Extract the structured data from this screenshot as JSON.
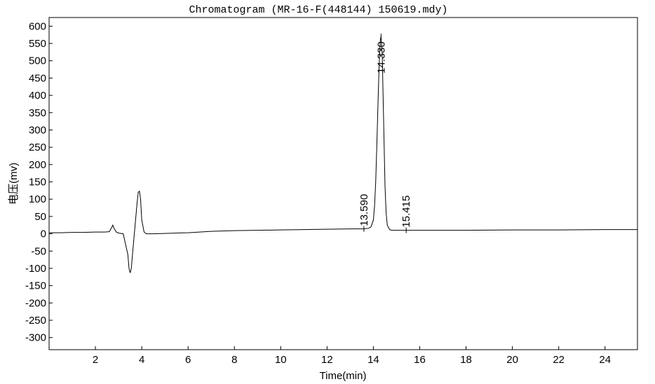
{
  "chart_data": {
    "type": "line",
    "title": "Chromatogram (MR-16-F(448144) 150619.mdy)",
    "xlabel": "Time(min)",
    "ylabel": "电压(mv)",
    "xlim": [
      0,
      25.4
    ],
    "ylim": [
      -335,
      625
    ],
    "x_ticks": [
      2,
      4,
      6,
      8,
      10,
      12,
      14,
      16,
      18,
      20,
      22,
      24
    ],
    "y_ticks": [
      600,
      550,
      500,
      450,
      400,
      350,
      300,
      250,
      200,
      150,
      100,
      50,
      0,
      -50,
      -100,
      -150,
      -200,
      -250,
      -300
    ],
    "grid": false,
    "series": [
      {
        "x": [
          0,
          0.5,
          1.0,
          1.5,
          2.0,
          2.4,
          2.6,
          2.7,
          2.75,
          2.8,
          2.9,
          3.0,
          3.2,
          3.4,
          3.45,
          3.5,
          3.55,
          3.6,
          3.7,
          3.8,
          3.85,
          3.9,
          3.95,
          4.0,
          4.1,
          4.2,
          4.5,
          5.0,
          5.5,
          6.0,
          6.5,
          7.0,
          7.5,
          8.0,
          9.0,
          10.0,
          11.0,
          12.0,
          13.0,
          13.59,
          13.8,
          13.9,
          14.0,
          14.05,
          14.1,
          14.15,
          14.2,
          14.25,
          14.3,
          14.33,
          14.38,
          14.45,
          14.5,
          14.55,
          14.6,
          14.7,
          14.8,
          15.0,
          15.415,
          16.0,
          18.0,
          20.0,
          22.0,
          24.0,
          25.4
        ],
        "y": [
          3,
          3,
          4,
          4,
          5,
          5,
          6,
          18,
          25,
          16,
          5,
          2,
          0,
          -60,
          -100,
          -113,
          -100,
          -60,
          15,
          90,
          120,
          123,
          100,
          40,
          5,
          0,
          0,
          1,
          2,
          3,
          5,
          7,
          8,
          9,
          10,
          11,
          12,
          13,
          14,
          14,
          16,
          20,
          40,
          80,
          150,
          260,
          380,
          490,
          560,
          570,
          520,
          300,
          140,
          60,
          25,
          12,
          10,
          10,
          10,
          10,
          10,
          11,
          11,
          12,
          12
        ]
      }
    ],
    "peaks": [
      {
        "rt": 13.59,
        "label": "13.590"
      },
      {
        "rt": 14.33,
        "label": "14.330"
      },
      {
        "rt": 15.415,
        "label": "15.415"
      }
    ]
  }
}
